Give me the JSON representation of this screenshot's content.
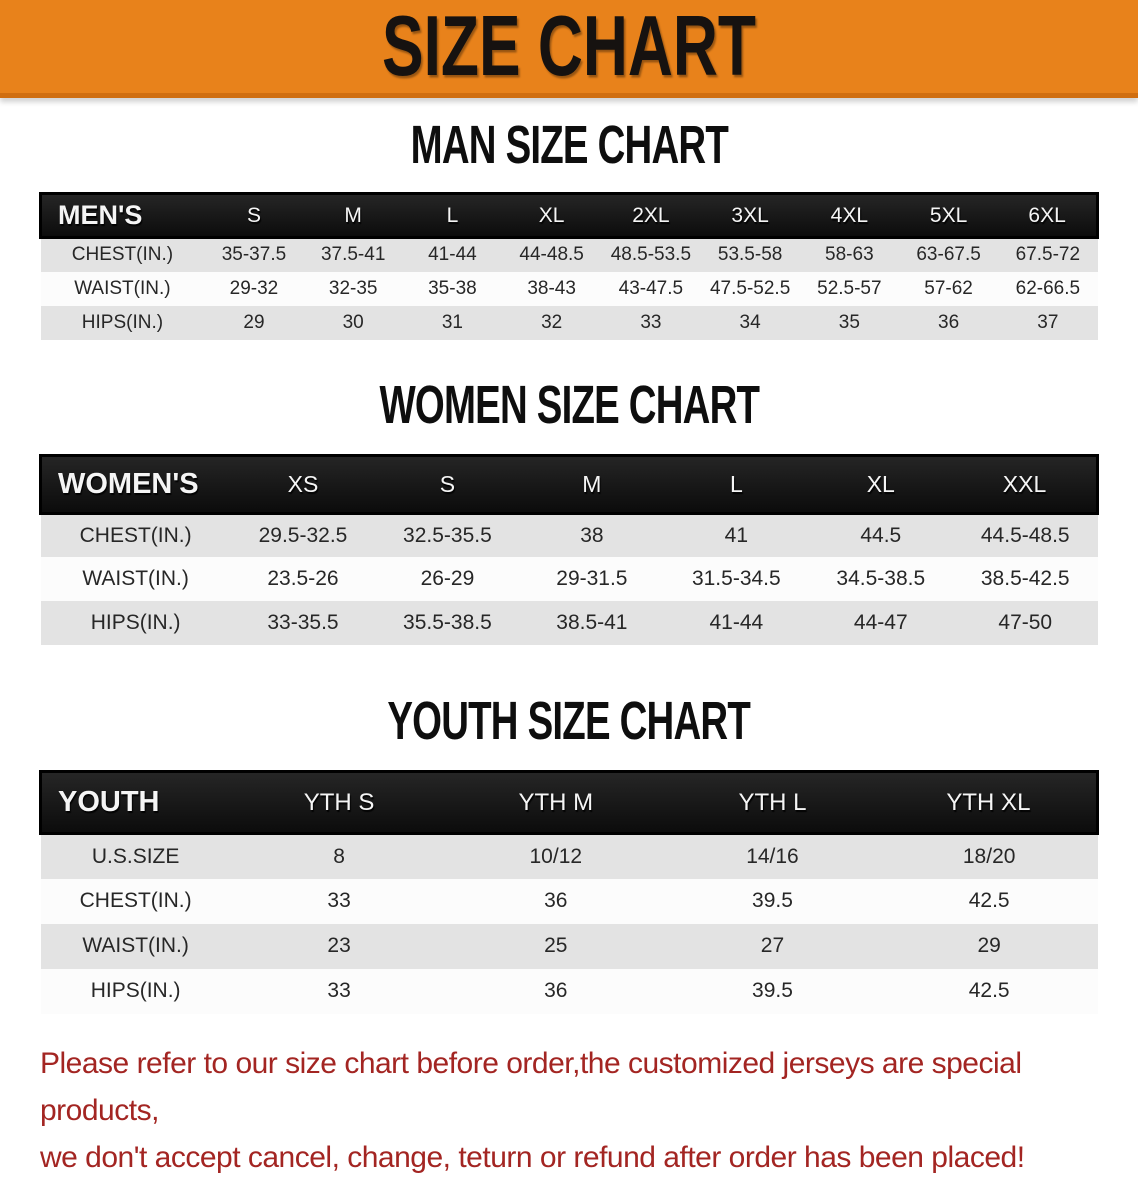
{
  "banner": {
    "title": "SIZE CHART"
  },
  "theme": {
    "banner_bg": "#E8821B",
    "table_header_bg": "#141414",
    "row_stripe": "#E3E3E3",
    "disclaimer_color": "#A32522"
  },
  "sections": [
    {
      "title": "MAN SIZE CHART",
      "header_label": "MEN'S",
      "columns": [
        "S",
        "M",
        "L",
        "XL",
        "2XL",
        "3XL",
        "4XL",
        "5XL",
        "6XL"
      ],
      "rows": [
        {
          "label": "CHEST(IN.)",
          "values": [
            "35-37.5",
            "37.5-41",
            "41-44",
            "44-48.5",
            "48.5-53.5",
            "53.5-58",
            "58-63",
            "63-67.5",
            "67.5-72"
          ]
        },
        {
          "label": "WAIST(IN.)",
          "values": [
            "29-32",
            "32-35",
            "35-38",
            "38-43",
            "43-47.5",
            "47.5-52.5",
            "52.5-57",
            "57-62",
            "62-66.5"
          ]
        },
        {
          "label": "HIPS(IN.)",
          "values": [
            "29",
            "30",
            "31",
            "32",
            "33",
            "34",
            "35",
            "36",
            "37"
          ]
        }
      ]
    },
    {
      "title": "WOMEN SIZE CHART",
      "header_label": "WOMEN'S",
      "columns": [
        "XS",
        "S",
        "M",
        "L",
        "XL",
        "XXL"
      ],
      "rows": [
        {
          "label": "CHEST(IN.)",
          "values": [
            "29.5-32.5",
            "32.5-35.5",
            "38",
            "41",
            "44.5",
            "44.5-48.5"
          ]
        },
        {
          "label": "WAIST(IN.)",
          "values": [
            "23.5-26",
            "26-29",
            "29-31.5",
            "31.5-34.5",
            "34.5-38.5",
            "38.5-42.5"
          ]
        },
        {
          "label": "HIPS(IN.)",
          "values": [
            "33-35.5",
            "35.5-38.5",
            "38.5-41",
            "41-44",
            "44-47",
            "47-50"
          ]
        }
      ]
    },
    {
      "title": "YOUTH SIZE CHART",
      "header_label": "YOUTH",
      "columns": [
        "YTH S",
        "YTH M",
        "YTH L",
        "YTH XL"
      ],
      "rows": [
        {
          "label": "U.S.SIZE",
          "values": [
            "8",
            "10/12",
            "14/16",
            "18/20"
          ]
        },
        {
          "label": "CHEST(IN.)",
          "values": [
            "33",
            "36",
            "39.5",
            "42.5"
          ]
        },
        {
          "label": "WAIST(IN.)",
          "values": [
            "23",
            "25",
            "27",
            "29"
          ]
        },
        {
          "label": "HIPS(IN.)",
          "values": [
            "33",
            "36",
            "39.5",
            "42.5"
          ]
        }
      ]
    }
  ],
  "disclaimer": {
    "line1": "Please refer to our size chart before order,the customized jerseys are special products,",
    "line2": "we don't accept cancel, change, teturn or refund after order has been placed!"
  }
}
